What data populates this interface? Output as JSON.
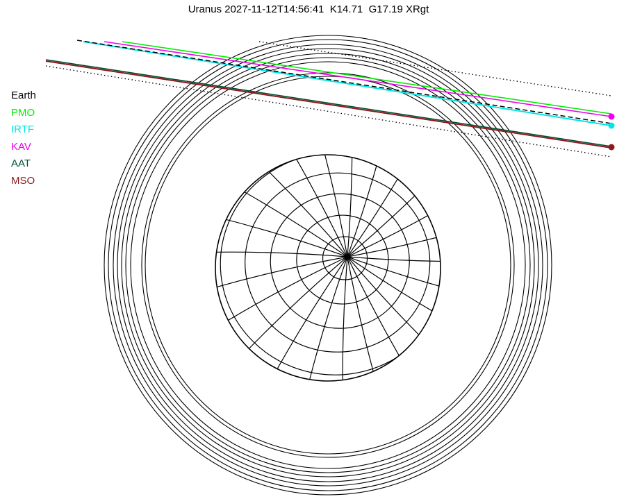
{
  "title": "Uranus 2027-11-12T14:56:41  K14.71  G17.19 XRgt",
  "legend": [
    {
      "label": "Earth",
      "color": "#000000"
    },
    {
      "label": "PMO",
      "color": "#00ee00"
    },
    {
      "label": "IRTF",
      "color": "#00e5e5"
    },
    {
      "label": "KAV",
      "color": "#ee00ee"
    },
    {
      "label": "AAT",
      "color": "#004d33"
    },
    {
      "label": "MSO",
      "color": "#8b1a1a"
    }
  ],
  "colors": {
    "earth": "#000000",
    "pmo": "#00ee00",
    "irtf": "#00e5e5",
    "kav": "#ee00ee",
    "aat": "#004d33",
    "mso": "#8b1a1a"
  }
}
